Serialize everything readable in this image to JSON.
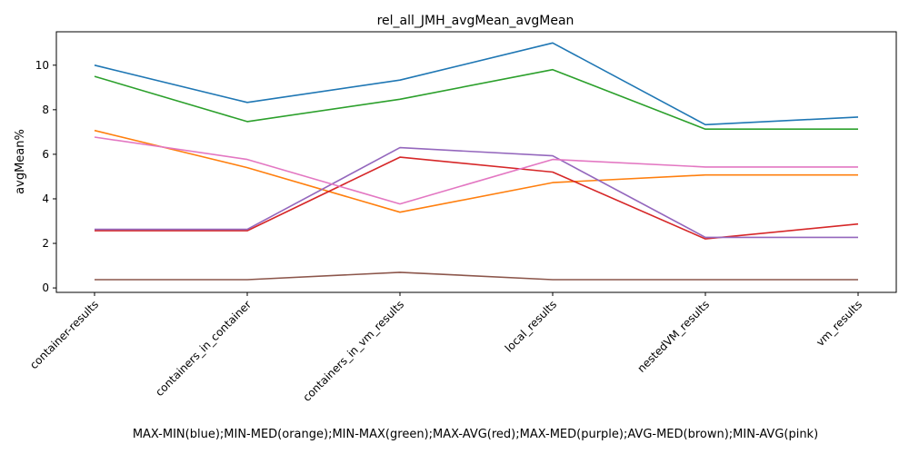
{
  "chart_data": {
    "type": "line",
    "title": "rel_all_JMH_avgMean_avgMean",
    "xlabel": "MAX-MIN(blue);MIN-MED(orange);MIN-MAX(green);MAX-AVG(red);MAX-MED(purple);AVG-MED(brown);MIN-AVG(pink)",
    "ylabel": "avgMean%",
    "categories": [
      "container-results",
      "containers_in_container",
      "containers_in_vm_results",
      "local_results",
      "nestedVM_results",
      "vm_results"
    ],
    "ylim": [
      -0.2,
      11.5
    ],
    "yticks": [
      0,
      2,
      4,
      6,
      8,
      10
    ],
    "grid": false,
    "series": [
      {
        "color": "#1f77b4",
        "values": [
          10.0,
          8.33,
          9.33,
          11.0,
          7.33,
          7.67
        ]
      },
      {
        "color": "#ff7f0e",
        "values": [
          7.07,
          5.4,
          3.4,
          4.73,
          5.07,
          5.07
        ]
      },
      {
        "color": "#2ca02c",
        "values": [
          9.5,
          7.47,
          8.47,
          9.8,
          7.13,
          7.13
        ]
      },
      {
        "color": "#d62728",
        "values": [
          2.57,
          2.57,
          5.87,
          5.2,
          2.2,
          2.87
        ]
      },
      {
        "color": "#9467bd",
        "values": [
          2.63,
          2.63,
          6.3,
          5.93,
          2.27,
          2.27
        ]
      },
      {
        "color": "#8c564b",
        "values": [
          0.37,
          0.37,
          0.7,
          0.37,
          0.37,
          0.37
        ]
      },
      {
        "color": "#e377c2",
        "values": [
          6.77,
          5.77,
          3.77,
          5.77,
          5.43,
          5.43
        ]
      }
    ]
  }
}
